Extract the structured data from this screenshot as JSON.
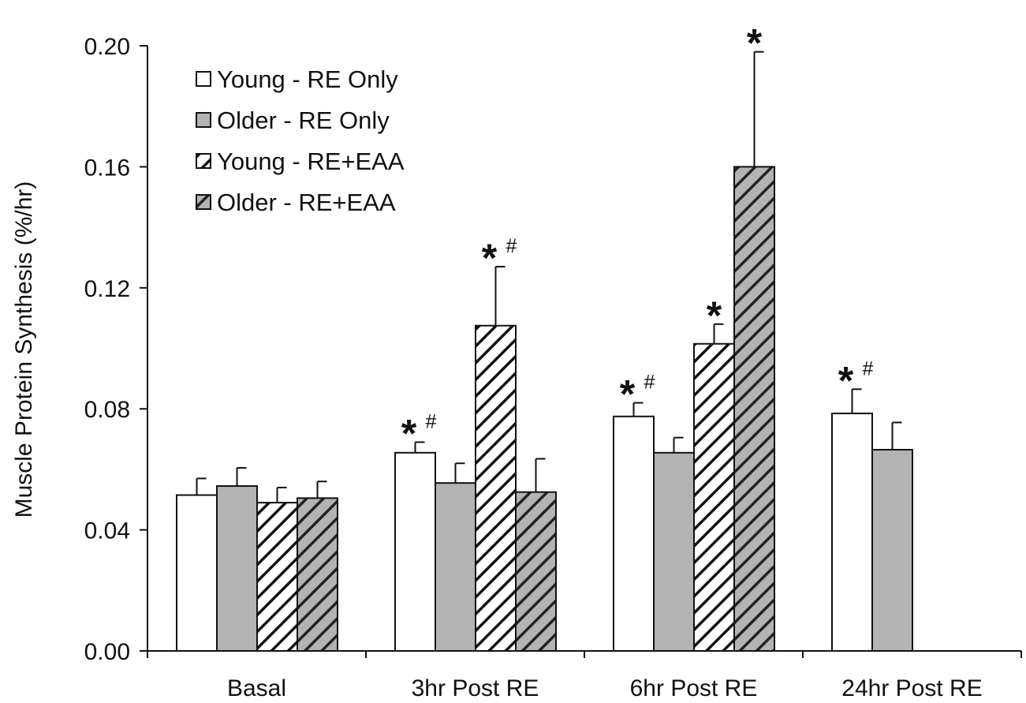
{
  "chart_data": {
    "type": "bar",
    "categories": [
      "Basal",
      "3hr Post RE",
      "6hr Post RE",
      "24hr Post RE"
    ],
    "ylabel": "Muscle Protein Synthesis (%/hr)",
    "xlabel": "",
    "ylim": [
      0,
      0.2
    ],
    "yticks": [
      "0.00",
      "0.04",
      "0.08",
      "0.12",
      "0.16",
      "0.20"
    ],
    "grid": false,
    "legend_position": "top-left",
    "series": [
      {
        "name": "Young - RE Only",
        "pattern": "open",
        "fill": "#ffffff",
        "values": [
          0.0515,
          0.0655,
          0.0775,
          0.0785
        ],
        "errors": [
          0.0055,
          0.0035,
          0.0045,
          0.008
        ],
        "annotations": [
          "",
          "*#",
          "*#",
          "*#"
        ]
      },
      {
        "name": "Older - RE Only",
        "pattern": "solid",
        "fill": "#b3b3b3",
        "values": [
          0.0545,
          0.0555,
          0.0655,
          0.0665
        ],
        "errors": [
          0.006,
          0.0065,
          0.005,
          0.009
        ],
        "annotations": [
          "",
          "",
          "",
          ""
        ]
      },
      {
        "name": "Young - RE+EAA",
        "pattern": "hatch-white",
        "fill": "#ffffff",
        "values": [
          0.049,
          0.1075,
          0.1015,
          null
        ],
        "errors": [
          0.005,
          0.0195,
          0.0065,
          null
        ],
        "annotations": [
          "",
          "*#",
          "*",
          ""
        ]
      },
      {
        "name": "Older - RE+EAA",
        "pattern": "hatch-gray",
        "fill": "#b3b3b3",
        "values": [
          0.0505,
          0.0525,
          0.16,
          null
        ],
        "errors": [
          0.0055,
          0.011,
          0.038,
          null
        ],
        "annotations": [
          "",
          "",
          "*",
          ""
        ]
      }
    ]
  }
}
